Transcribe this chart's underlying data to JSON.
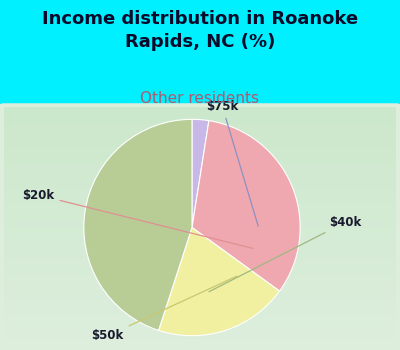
{
  "title": "Income distribution in Roanoke\nRapids, NC (%)",
  "subtitle": "Other residents",
  "labels": [
    "$75k",
    "$40k",
    "$50k",
    "$20k"
  ],
  "sizes": [
    2.5,
    45.0,
    20.0,
    32.5
  ],
  "colors": [
    "#c8b8e8",
    "#b8cc96",
    "#f0f0a0",
    "#f0a8b0"
  ],
  "start_angle": 90,
  "bg_color": "#00f0ff",
  "pie_bg_gradient_top": "#e8f0e8",
  "pie_bg_gradient_bottom": "#c8e8d8",
  "title_fontsize": 13,
  "subtitle_fontsize": 11,
  "subtitle_color": "#b05870",
  "label_fontsize": 8.5,
  "label_color": "#1a1a2e",
  "annotation_color_75k": "#9090c0",
  "annotation_color_40k": "#a0b880",
  "annotation_color_50k": "#c8c870",
  "annotation_color_20k": "#e09090"
}
